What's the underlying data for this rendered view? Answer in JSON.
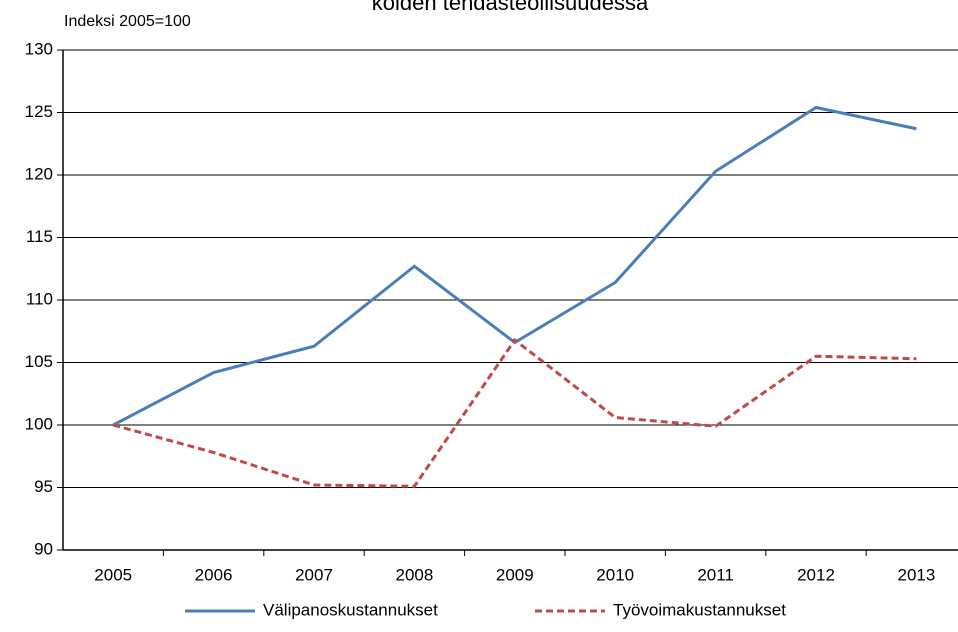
{
  "chart_data": {
    "type": "line",
    "title": "koiden tehdasteollisuudessa",
    "y_axis_label": "Indeksi 2005=100",
    "categories": [
      "2005",
      "2006",
      "2007",
      "2008",
      "2009",
      "2010",
      "2011",
      "2012",
      "2013"
    ],
    "series": [
      {
        "name": "Välipanoskustannukset",
        "color": "#4a7ebb",
        "dash": "solid",
        "values": [
          100,
          104.2,
          106.3,
          112.7,
          106.6,
          111.4,
          120.3,
          125.4,
          123.7
        ]
      },
      {
        "name": "Työvoimakustannukset",
        "color": "#be4b48",
        "dash": "dashed",
        "values": [
          100,
          97.8,
          95.2,
          95.1,
          106.8,
          100.6,
          99.9,
          105.5,
          105.3
        ]
      }
    ],
    "ylim": [
      90,
      130
    ],
    "yticks": [
      90,
      95,
      100,
      105,
      110,
      115,
      120,
      125,
      130
    ],
    "grid": true,
    "legend": "bottom"
  }
}
